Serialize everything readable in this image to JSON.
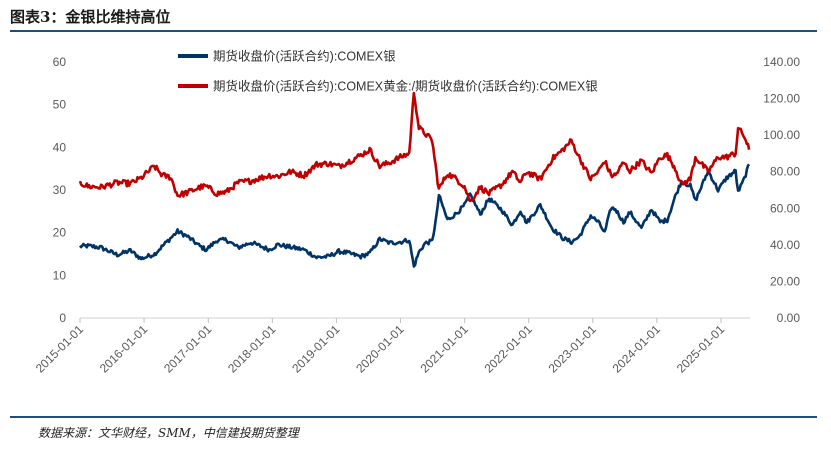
{
  "figure_title": "图表3：金银比维持高位",
  "source": "数据来源：文华财经，SMM，中信建投期货整理",
  "chart_data": {
    "type": "line",
    "title": "",
    "x_ticks": [
      "2015-01-01",
      "2016-01-01",
      "2017-01-01",
      "2018-01-01",
      "2019-01-01",
      "2020-01-01",
      "2021-01-01",
      "2022-01-01",
      "2023-01-01",
      "2024-01-01",
      "2025-01-01"
    ],
    "left_axis": {
      "ylim": [
        0,
        60
      ],
      "ticks": [
        "0",
        "10",
        "20",
        "30",
        "40",
        "50",
        "60"
      ]
    },
    "right_axis": {
      "ylim": [
        0,
        140
      ],
      "ticks": [
        "0.00",
        "20.00",
        "40.00",
        "60.00",
        "80.00",
        "100.00",
        "120.00",
        "140.00"
      ]
    },
    "grid": false,
    "legend_position": "top",
    "series": [
      {
        "name": "期货收盘价(活跃合约):COMEX银",
        "axis": "left",
        "color": "#003366",
        "points": [
          [
            "2015-01-01",
            16.8
          ],
          [
            "2015-02-15",
            16.9
          ],
          [
            "2015-05-01",
            16.5
          ],
          [
            "2015-08-01",
            14.8
          ],
          [
            "2015-10-15",
            15.8
          ],
          [
            "2015-12-15",
            13.9
          ],
          [
            "2016-03-01",
            15.0
          ],
          [
            "2016-05-01",
            17.5
          ],
          [
            "2016-07-10",
            20.3
          ],
          [
            "2016-09-01",
            19.2
          ],
          [
            "2016-11-15",
            16.8
          ],
          [
            "2016-12-20",
            16.0
          ],
          [
            "2017-02-20",
            18.2
          ],
          [
            "2017-04-15",
            18.3
          ],
          [
            "2017-06-20",
            16.5
          ],
          [
            "2017-09-01",
            17.7
          ],
          [
            "2017-12-15",
            16.0
          ],
          [
            "2018-02-01",
            17.2
          ],
          [
            "2018-04-15",
            16.6
          ],
          [
            "2018-07-01",
            16.0
          ],
          [
            "2018-09-10",
            14.2
          ],
          [
            "2018-11-15",
            14.4
          ],
          [
            "2019-01-15",
            15.6
          ],
          [
            "2019-03-01",
            15.3
          ],
          [
            "2019-05-20",
            14.4
          ],
          [
            "2019-07-10",
            15.2
          ],
          [
            "2019-09-05",
            18.5
          ],
          [
            "2019-11-01",
            17.6
          ],
          [
            "2019-12-31",
            17.8
          ],
          [
            "2020-02-20",
            18.3
          ],
          [
            "2020-03-18",
            12.0
          ],
          [
            "2020-04-15",
            15.4
          ],
          [
            "2020-05-20",
            17.5
          ],
          [
            "2020-06-30",
            18.0
          ],
          [
            "2020-07-25",
            24.0
          ],
          [
            "2020-08-07",
            28.8
          ],
          [
            "2020-09-25",
            23.0
          ],
          [
            "2020-11-15",
            24.5
          ],
          [
            "2020-12-31",
            26.4
          ],
          [
            "2021-02-01",
            29.0
          ],
          [
            "2021-03-31",
            24.3
          ],
          [
            "2021-05-20",
            28.0
          ],
          [
            "2021-08-01",
            25.3
          ],
          [
            "2021-09-30",
            21.8
          ],
          [
            "2021-11-15",
            25.2
          ],
          [
            "2021-12-20",
            22.3
          ],
          [
            "2022-03-08",
            26.5
          ],
          [
            "2022-05-15",
            21.0
          ],
          [
            "2022-07-15",
            18.7
          ],
          [
            "2022-09-01",
            17.8
          ],
          [
            "2022-10-15",
            19.0
          ],
          [
            "2022-12-20",
            24.0
          ],
          [
            "2023-02-01",
            22.5
          ],
          [
            "2023-03-10",
            20.0
          ],
          [
            "2023-04-15",
            25.8
          ],
          [
            "2023-05-10",
            25.5
          ],
          [
            "2023-06-25",
            22.5
          ],
          [
            "2023-08-01",
            24.8
          ],
          [
            "2023-10-05",
            21.0
          ],
          [
            "2023-12-01",
            25.5
          ],
          [
            "2024-01-20",
            22.5
          ],
          [
            "2024-03-01",
            23.0
          ],
          [
            "2024-04-15",
            28.5
          ],
          [
            "2024-05-20",
            32.0
          ],
          [
            "2024-07-10",
            31.0
          ],
          [
            "2024-08-08",
            27.5
          ],
          [
            "2024-10-20",
            34.5
          ],
          [
            "2024-12-15",
            30.0
          ],
          [
            "2025-02-01",
            32.8
          ],
          [
            "2025-03-25",
            34.5
          ],
          [
            "2025-04-08",
            29.5
          ],
          [
            "2025-05-15",
            32.8
          ],
          [
            "2025-06-10",
            36.0
          ]
        ]
      },
      {
        "name": "期货收盘价(活跃合约):COMEX黄金:/期货收盘价(活跃合约):COMEX银",
        "axis": "right",
        "color": "#c00000",
        "points": [
          [
            "2015-01-01",
            74.0
          ],
          [
            "2015-02-15",
            72.0
          ],
          [
            "2015-05-01",
            71.5
          ],
          [
            "2015-08-01",
            74.0
          ],
          [
            "2015-10-15",
            73.5
          ],
          [
            "2015-12-15",
            76.5
          ],
          [
            "2016-02-28",
            83.0
          ],
          [
            "2016-04-15",
            78.0
          ],
          [
            "2016-06-01",
            77.0
          ],
          [
            "2016-07-10",
            67.0
          ],
          [
            "2016-09-01",
            68.5
          ],
          [
            "2016-11-15",
            71.5
          ],
          [
            "2016-12-20",
            72.0
          ],
          [
            "2017-02-20",
            68.0
          ],
          [
            "2017-04-15",
            69.0
          ],
          [
            "2017-06-20",
            74.0
          ],
          [
            "2017-09-01",
            75.0
          ],
          [
            "2017-12-15",
            78.0
          ],
          [
            "2018-02-01",
            77.5
          ],
          [
            "2018-04-15",
            80.0
          ],
          [
            "2018-07-01",
            78.0
          ],
          [
            "2018-09-10",
            84.0
          ],
          [
            "2018-11-15",
            84.5
          ],
          [
            "2019-01-15",
            83.0
          ],
          [
            "2019-03-01",
            85.0
          ],
          [
            "2019-05-20",
            89.0
          ],
          [
            "2019-07-10",
            92.0
          ],
          [
            "2019-09-05",
            83.0
          ],
          [
            "2019-11-01",
            85.0
          ],
          [
            "2019-12-31",
            88.0
          ],
          [
            "2020-02-20",
            90.0
          ],
          [
            "2020-03-18",
            124.0
          ],
          [
            "2020-04-15",
            104.0
          ],
          [
            "2020-05-20",
            101.0
          ],
          [
            "2020-06-30",
            97.0
          ],
          [
            "2020-07-25",
            79.0
          ],
          [
            "2020-08-07",
            70.5
          ],
          [
            "2020-09-25",
            79.0
          ],
          [
            "2020-11-15",
            76.0
          ],
          [
            "2020-12-31",
            72.0
          ],
          [
            "2021-02-01",
            63.5
          ],
          [
            "2021-03-31",
            71.5
          ],
          [
            "2021-05-20",
            68.0
          ],
          [
            "2021-08-01",
            73.0
          ],
          [
            "2021-09-30",
            80.0
          ],
          [
            "2021-11-15",
            74.0
          ],
          [
            "2021-12-20",
            80.0
          ],
          [
            "2022-03-08",
            76.0
          ],
          [
            "2022-05-15",
            87.0
          ],
          [
            "2022-07-15",
            92.0
          ],
          [
            "2022-09-01",
            97.0
          ],
          [
            "2022-10-15",
            88.0
          ],
          [
            "2022-12-20",
            76.0
          ],
          [
            "2023-02-01",
            80.0
          ],
          [
            "2023-03-10",
            86.0
          ],
          [
            "2023-04-15",
            78.0
          ],
          [
            "2023-05-10",
            78.0
          ],
          [
            "2023-06-25",
            85.0
          ],
          [
            "2023-08-01",
            80.5
          ],
          [
            "2023-10-05",
            86.0
          ],
          [
            "2023-12-01",
            79.0
          ],
          [
            "2024-01-20",
            88.0
          ],
          [
            "2024-03-01",
            89.0
          ],
          [
            "2024-04-15",
            82.0
          ],
          [
            "2024-05-20",
            73.0
          ],
          [
            "2024-07-10",
            76.0
          ],
          [
            "2024-08-08",
            88.0
          ],
          [
            "2024-10-20",
            80.0
          ],
          [
            "2024-12-15",
            88.0
          ],
          [
            "2025-02-01",
            88.0
          ],
          [
            "2025-03-25",
            90.0
          ],
          [
            "2025-04-08",
            104.0
          ],
          [
            "2025-05-15",
            99.0
          ],
          [
            "2025-06-10",
            92.0
          ]
        ]
      }
    ]
  }
}
